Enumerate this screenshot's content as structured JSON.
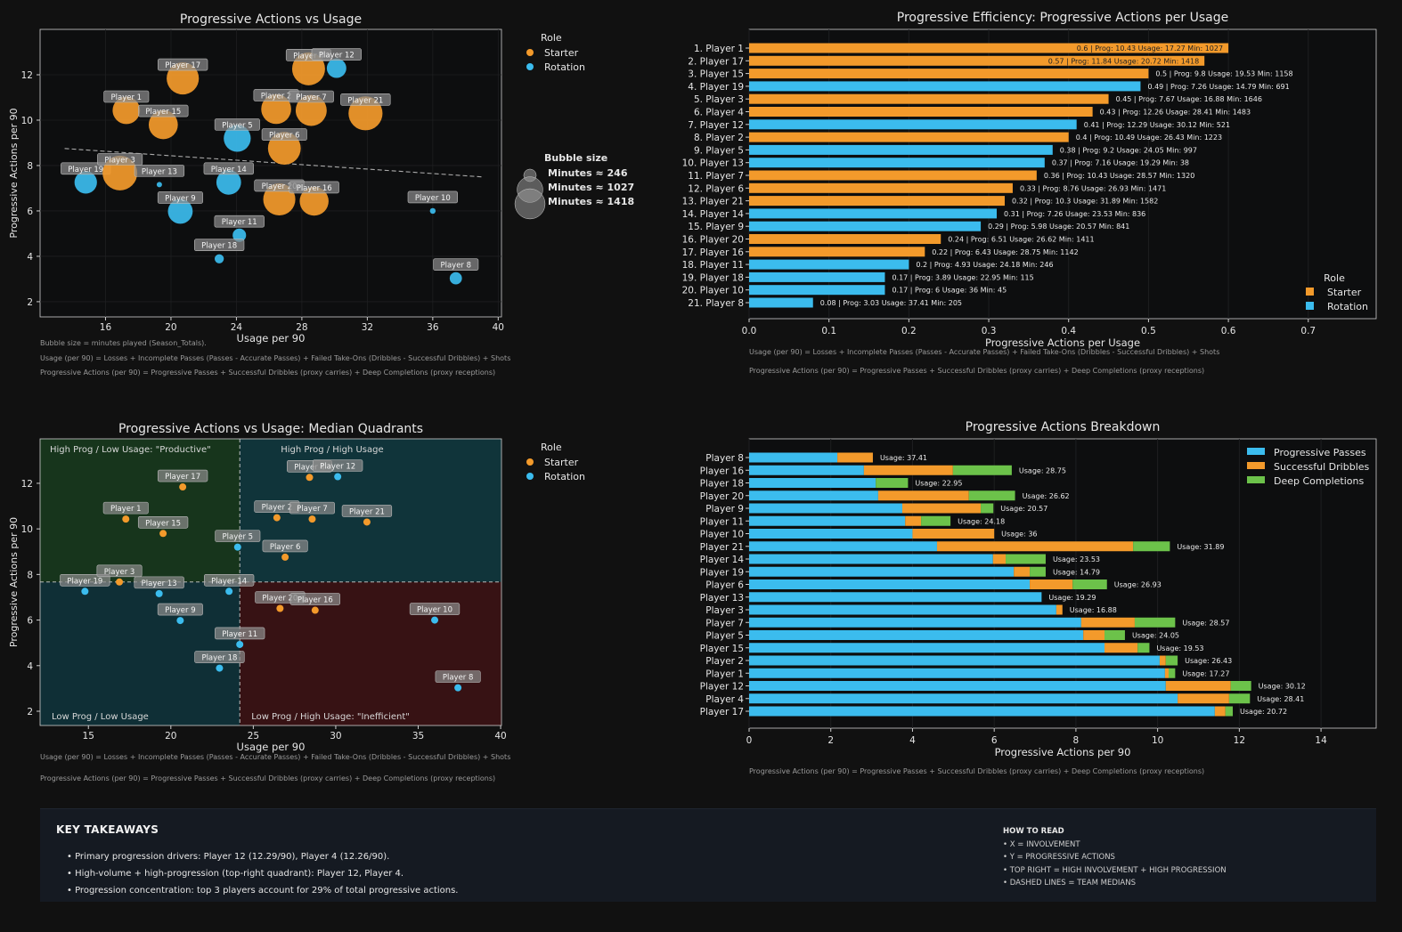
{
  "colors": {
    "starter": "#f39a2b",
    "rotation": "#3bbcee",
    "deep": "#6cc24a",
    "background": "#111111"
  },
  "players": [
    {
      "name": "Player 1",
      "role": "Starter",
      "usage": 17.27,
      "prog": 10.43,
      "minutes": 1027,
      "efficiency": 0.6,
      "passes": 10.18,
      "dribbles": 0.09,
      "deep": 0.16
    },
    {
      "name": "Player 17",
      "role": "Starter",
      "usage": 20.72,
      "prog": 11.84,
      "minutes": 1418,
      "efficiency": 0.57,
      "passes": 11.4,
      "dribbles": 0.26,
      "deep": 0.18
    },
    {
      "name": "Player 15",
      "role": "Starter",
      "usage": 19.53,
      "prog": 9.8,
      "minutes": 1158,
      "efficiency": 0.5,
      "passes": 8.7,
      "dribbles": 0.81,
      "deep": 0.29
    },
    {
      "name": "Player 19",
      "role": "Rotation",
      "usage": 14.79,
      "prog": 7.26,
      "minutes": 691,
      "efficiency": 0.49,
      "passes": 6.48,
      "dribbles": 0.39,
      "deep": 0.39
    },
    {
      "name": "Player 3",
      "role": "Starter",
      "usage": 16.88,
      "prog": 7.67,
      "minutes": 1646,
      "efficiency": 0.45,
      "passes": 7.52,
      "dribbles": 0.15,
      "deep": 0
    },
    {
      "name": "Player 4",
      "role": "Starter",
      "usage": 28.41,
      "prog": 12.26,
      "minutes": 1483,
      "efficiency": 0.43,
      "passes": 10.49,
      "dribbles": 1.26,
      "deep": 0.51
    },
    {
      "name": "Player 12",
      "role": "Rotation",
      "usage": 30.12,
      "prog": 12.29,
      "minutes": 521,
      "efficiency": 0.41,
      "passes": 10.2,
      "dribbles": 1.59,
      "deep": 0.5
    },
    {
      "name": "Player 2",
      "role": "Starter",
      "usage": 26.43,
      "prog": 10.49,
      "minutes": 1223,
      "efficiency": 0.4,
      "passes": 10.05,
      "dribbles": 0.15,
      "deep": 0.29
    },
    {
      "name": "Player 5",
      "role": "Rotation",
      "usage": 24.05,
      "prog": 9.2,
      "minutes": 997,
      "efficiency": 0.38,
      "passes": 8.18,
      "dribbles": 0.52,
      "deep": 0.5
    },
    {
      "name": "Player 13",
      "role": "Rotation",
      "usage": 19.29,
      "prog": 7.16,
      "minutes": 38,
      "efficiency": 0.37,
      "passes": 7.16,
      "dribbles": 0,
      "deep": 0
    },
    {
      "name": "Player 7",
      "role": "Starter",
      "usage": 28.57,
      "prog": 10.43,
      "minutes": 1320,
      "efficiency": 0.36,
      "passes": 8.13,
      "dribbles": 1.31,
      "deep": 0.99
    },
    {
      "name": "Player 6",
      "role": "Starter",
      "usage": 26.93,
      "prog": 8.76,
      "minutes": 1471,
      "efficiency": 0.33,
      "passes": 6.87,
      "dribbles": 1.05,
      "deep": 0.84
    },
    {
      "name": "Player 21",
      "role": "Starter",
      "usage": 31.89,
      "prog": 10.3,
      "minutes": 1582,
      "efficiency": 0.32,
      "passes": 4.6,
      "dribbles": 4.8,
      "deep": 0.9
    },
    {
      "name": "Player 14",
      "role": "Rotation",
      "usage": 23.53,
      "prog": 7.26,
      "minutes": 836,
      "efficiency": 0.31,
      "passes": 5.97,
      "dribbles": 0.31,
      "deep": 0.98
    },
    {
      "name": "Player 9",
      "role": "Rotation",
      "usage": 20.57,
      "prog": 5.98,
      "minutes": 841,
      "efficiency": 0.29,
      "passes": 3.75,
      "dribbles": 1.92,
      "deep": 0.31
    },
    {
      "name": "Player 20",
      "role": "Starter",
      "usage": 26.62,
      "prog": 6.51,
      "minutes": 1411,
      "efficiency": 0.24,
      "passes": 3.16,
      "dribbles": 2.22,
      "deep": 1.13
    },
    {
      "name": "Player 16",
      "role": "Starter",
      "usage": 28.75,
      "prog": 6.43,
      "minutes": 1142,
      "efficiency": 0.22,
      "passes": 2.81,
      "dribbles": 2.18,
      "deep": 1.44
    },
    {
      "name": "Player 11",
      "role": "Rotation",
      "usage": 24.18,
      "prog": 4.93,
      "minutes": 246,
      "efficiency": 0.2,
      "passes": 3.82,
      "dribbles": 0.39,
      "deep": 0.72
    },
    {
      "name": "Player 18",
      "role": "Rotation",
      "usage": 22.95,
      "prog": 3.89,
      "minutes": 115,
      "efficiency": 0.17,
      "passes": 3.1,
      "dribbles": 0,
      "deep": 0.79
    },
    {
      "name": "Player 10",
      "role": "Rotation",
      "usage": 36,
      "prog": 6,
      "minutes": 45,
      "efficiency": 0.17,
      "passes": 4.0,
      "dribbles": 2.0,
      "deep": 0
    },
    {
      "name": "Player 8",
      "role": "Rotation",
      "usage": 37.41,
      "prog": 3.03,
      "minutes": 205,
      "efficiency": 0.08,
      "passes": 2.16,
      "dribbles": 0.87,
      "deep": 0
    }
  ],
  "chart_data": [
    {
      "type": "scatter",
      "title": "Progressive Actions vs Usage",
      "xlabel": "Usage per 90",
      "ylabel": "Progressive Actions per 90",
      "xlim": [
        12,
        40.2
      ],
      "ylim": [
        1.33,
        14
      ],
      "xticks": [
        16,
        20,
        24,
        28,
        32,
        36,
        40
      ],
      "yticks": [
        2,
        4,
        6,
        8,
        10,
        12
      ],
      "trendline": {
        "x": [
          13.5,
          39
        ],
        "y": [
          8.75,
          7.5
        ],
        "style": "dashed"
      },
      "legend": {
        "title": "Role",
        "entries": [
          "Starter",
          "Rotation"
        ],
        "placement": "outside-right"
      },
      "size_legend": {
        "title": "Bubble size",
        "entries": [
          {
            "label": "Minutes ≈ 246",
            "minutes": 246
          },
          {
            "label": "Minutes ≈ 1027",
            "minutes": 1027
          },
          {
            "label": "Minutes ≈ 1418",
            "minutes": 1418
          }
        ]
      },
      "notes": [
        "Bubble size = minutes played (Season_Totals).",
        "Usage (per 90) = Losses + Incomplete Passes (Passes - Accurate Passes) + Failed Take-Ons (Dribbles - Successful Dribbles) + Shots",
        "Progressive Actions (per 90) = Progressive Passes + Successful Dribbles (proxy carries) + Deep Completions (proxy receptions)"
      ]
    },
    {
      "type": "bar",
      "orientation": "horizontal",
      "title": "Progressive Efficiency: Progressive Actions per Usage",
      "xlabel": "Progressive Actions per Usage",
      "xlim": [
        0,
        0.785
      ],
      "xticks": [
        "0.0",
        "0.1",
        "0.2",
        "0.3",
        "0.4",
        "0.5",
        "0.6",
        "0.7"
      ],
      "legend": {
        "title": "Role",
        "entries": [
          "Starter",
          "Rotation"
        ],
        "placement": "lower-right"
      },
      "notes": [
        "Usage (per 90) = Losses + Incomplete Passes (Passes - Accurate Passes) + Failed Take-Ons (Dribbles - Successful Dribbles) + Shots",
        "Progressive Actions (per 90) = Progressive Passes + Successful Dribbles (proxy carries) + Deep Completions (proxy receptions)"
      ]
    },
    {
      "type": "scatter",
      "title": "Progressive Actions vs Usage: Median Quadrants",
      "xlabel": "Usage per 90",
      "ylabel": "Progressive Actions per 90",
      "xlim": [
        12.07,
        40.05
      ],
      "ylim": [
        1.375,
        13.95
      ],
      "xticks": [
        15,
        20,
        25,
        30,
        35,
        40
      ],
      "yticks": [
        2,
        4,
        6,
        8,
        10,
        12
      ],
      "medians": {
        "usage": 24.18,
        "prog": 7.67
      },
      "quadrants": {
        "top_left": "High Prog / Low Usage: \"Productive\"",
        "top_right": "High Prog / High Usage",
        "bottom_left": "Low Prog / Low Usage",
        "bottom_right": "Low Prog / High Usage: \"Inefficient\""
      },
      "legend": {
        "title": "Role",
        "entries": [
          "Starter",
          "Rotation"
        ],
        "placement": "outside-right"
      },
      "notes": [
        "Usage (per 90) = Losses + Incomplete Passes (Passes - Accurate Passes) + Failed Take-Ons (Dribbles - Successful Dribbles) + Shots",
        "Progressive Actions (per 90) = Progressive Passes + Successful Dribbles (proxy carries) + Deep Completions (proxy receptions)"
      ]
    },
    {
      "type": "bar",
      "orientation": "horizontal-stacked",
      "title": "Progressive Actions Breakdown",
      "xlabel": "Progressive Actions per 90",
      "xlim": [
        0,
        15.35
      ],
      "xticks": [
        0,
        2,
        4,
        6,
        8,
        10,
        12,
        14
      ],
      "order": [
        "Player 8",
        "Player 16",
        "Player 18",
        "Player 20",
        "Player 9",
        "Player 11",
        "Player 10",
        "Player 21",
        "Player 14",
        "Player 19",
        "Player 6",
        "Player 13",
        "Player 3",
        "Player 7",
        "Player 5",
        "Player 15",
        "Player 2",
        "Player 1",
        "Player 12",
        "Player 4",
        "Player 17"
      ],
      "series": [
        {
          "name": "Progressive Passes"
        },
        {
          "name": "Successful Dribbles"
        },
        {
          "name": "Deep Completions"
        }
      ],
      "legend": {
        "placement": "upper-right"
      },
      "notes": [
        "Progressive Actions (per 90) = Progressive Passes + Successful Dribbles (proxy carries) + Deep Completions (proxy receptions)"
      ]
    }
  ],
  "takeaways": {
    "title": "KEY TAKEAWAYS",
    "items": [
      "• Primary progression drivers: Player 12 (12.29/90), Player 4 (12.26/90).",
      "• High-volume + high-progression (top-right quadrant): Player 12, Player 4.",
      "• Progression concentration: top 3 players account for 29% of total progressive actions."
    ],
    "how_title": "HOW TO READ",
    "how_items": [
      "• X = INVOLVEMENT",
      "• Y = PROGRESSIVE ACTIONS",
      "• TOP RIGHT = HIGH INVOLVEMENT + HIGH PROGRESSION",
      "• DASHED LINES = TEAM MEDIANS"
    ]
  }
}
